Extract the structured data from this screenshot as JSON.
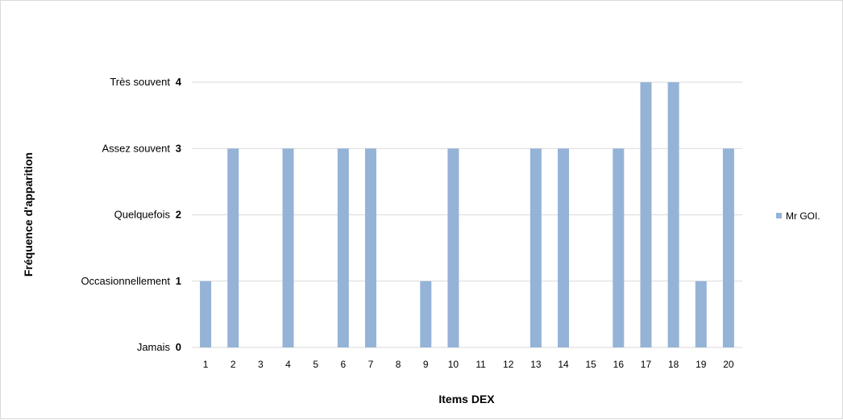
{
  "chart_data": {
    "type": "bar",
    "xlabel": "Items DEX",
    "ylabel": "Fréquence d'apparition",
    "categories": [
      "1",
      "2",
      "3",
      "4",
      "5",
      "6",
      "7",
      "8",
      "9",
      "10",
      "11",
      "12",
      "13",
      "14",
      "15",
      "16",
      "17",
      "18",
      "19",
      "20"
    ],
    "series": [
      {
        "name": "Mr GOI.",
        "color": "#95b3d7",
        "values": [
          1,
          3,
          0,
          3,
          0,
          3,
          3,
          0,
          1,
          3,
          0,
          0,
          3,
          3,
          0,
          3,
          4,
          4,
          1,
          3
        ]
      }
    ],
    "ylim": [
      0,
      4
    ],
    "yticks": [
      {
        "value": 0,
        "number": "0",
        "label": "Jamais"
      },
      {
        "value": 1,
        "number": "1",
        "label": "Occasionnellement"
      },
      {
        "value": 2,
        "number": "2",
        "label": "Quelquefois"
      },
      {
        "value": 3,
        "number": "3",
        "label": "Assez souvent"
      },
      {
        "value": 4,
        "number": "4",
        "label": "Très souvent"
      }
    ],
    "grid": true,
    "legend": "right",
    "gridColor": "#d9d9d9"
  }
}
